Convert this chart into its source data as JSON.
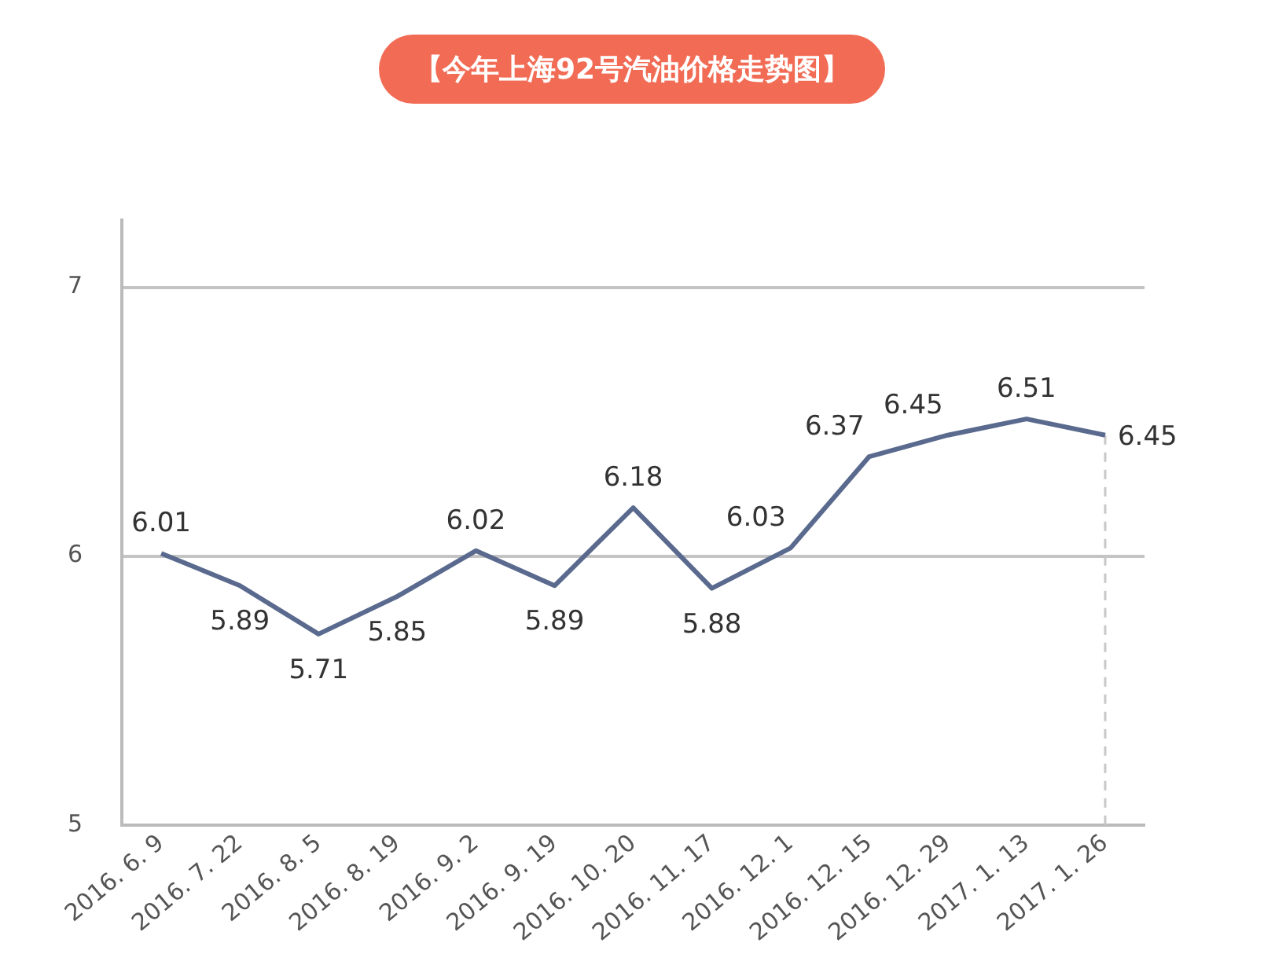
{
  "chart_data": {
    "type": "line",
    "title": "【今年上海92号汽油价格走势图】",
    "categories": [
      "2016. 6. 9",
      "2016. 7. 22",
      "2016. 8. 5",
      "2016. 8. 19",
      "2016. 9. 2",
      "2016. 9. 19",
      "2016. 10. 20",
      "2016. 11. 17",
      "2016. 12. 1",
      "2016. 12. 15",
      "2016. 12. 29",
      "2017. 1. 13",
      "2017. 1. 26"
    ],
    "series": [
      {
        "color": "#5a6a8e",
        "values": [
          6.01,
          5.89,
          5.71,
          5.85,
          6.02,
          5.89,
          6.18,
          5.88,
          6.03,
          6.37,
          6.45,
          6.51,
          6.45
        ]
      }
    ],
    "data_labels": true,
    "ylim": [
      5,
      7.25
    ],
    "yticks": [
      5,
      6,
      7
    ],
    "grid": "y",
    "legend": false,
    "marker": "none",
    "line_style": "solid",
    "ref_lines": [
      {
        "axis": "x",
        "value": "2017. 1. 26",
        "color": "#c8c8c8",
        "line_style": "dashed"
      }
    ]
  }
}
